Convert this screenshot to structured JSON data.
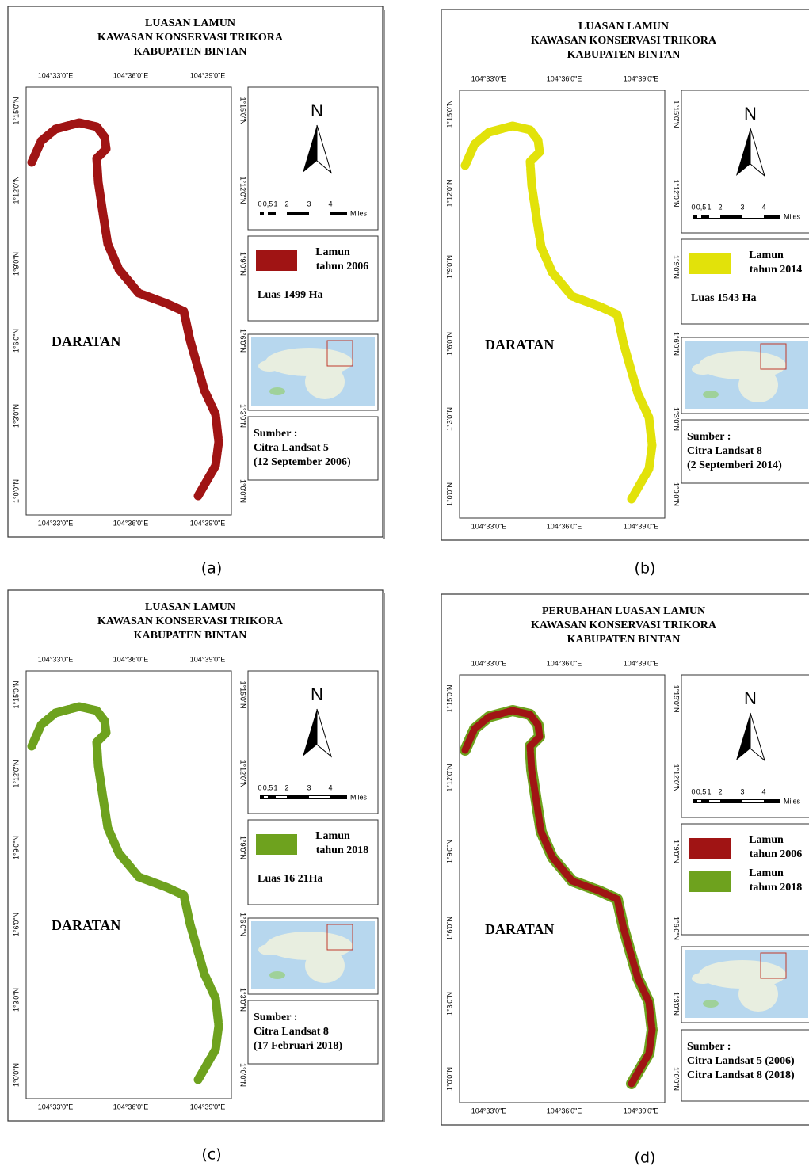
{
  "panels": [
    {
      "caption": "(a)",
      "title": [
        "LUASAN LAMUN",
        "KAWASAN KONSERVASI TRIKORA",
        "KABUPATEN BINTAN"
      ],
      "x_ticks": [
        "104°33'0\"E",
        "104°36'0\"E",
        "104°39'0\"E"
      ],
      "y_ticks": [
        "1°15'0\"N",
        "1°12'0\"N",
        "1°9'0\"N",
        "1°6'0\"N",
        "1°3'0\"N",
        "1°0'0\"N"
      ],
      "north": "N",
      "scale_labels": [
        "0",
        "0,5",
        "1",
        "2",
        "3",
        "4"
      ],
      "scale_unit": "Miles",
      "legend": [
        {
          "label": "Lamun",
          "sublabel": "tahun 2006",
          "color": "#a01414"
        }
      ],
      "area": "Luas 1499 Ha",
      "land_label": "DARATAN",
      "source": [
        "Sumber :",
        "Citra Landsat 5",
        "(12 September 2006)"
      ]
    },
    {
      "caption": "(b)",
      "title": [
        "LUASAN LAMUN",
        "KAWASAN KONSERVASI TRIKORA",
        "KABUPATEN BINTAN"
      ],
      "x_ticks": [
        "104°33'0\"E",
        "104°36'0\"E",
        "104°39'0\"E"
      ],
      "y_ticks": [
        "1°15'0\"N",
        "1°12'0\"N",
        "1°9'0\"N",
        "1°6'0\"N",
        "1°3'0\"N",
        "1°0'0\"N"
      ],
      "north": "N",
      "scale_labels": [
        "0",
        "0,5",
        "1",
        "2",
        "3",
        "4"
      ],
      "scale_unit": "Miles",
      "legend": [
        {
          "label": "Lamun",
          "sublabel": "tahun 2014",
          "color": "#e2e20a"
        }
      ],
      "area": "Luas 1543 Ha",
      "land_label": "DARATAN",
      "source": [
        "Sumber :",
        "Citra Landsat 8",
        "(2 Septemberi 2014)"
      ]
    },
    {
      "caption": "(c)",
      "title": [
        "LUASAN LAMUN",
        "KAWASAN KONSERVASI TRIKORA",
        "KABUPATEN BINTAN"
      ],
      "x_ticks": [
        "104°33'0\"E",
        "104°36'0\"E",
        "104°39'0\"E"
      ],
      "y_ticks": [
        "1°15'0\"N",
        "1°12'0\"N",
        "1°9'0\"N",
        "1°6'0\"N",
        "1°3'0\"N",
        "1°0'0\"N"
      ],
      "north": "N",
      "scale_labels": [
        "0",
        "0,5",
        "1",
        "2",
        "3",
        "4"
      ],
      "scale_unit": "Miles",
      "legend": [
        {
          "label": "Lamun",
          "sublabel": "tahun 2018",
          "color": "#6ea21e"
        }
      ],
      "area": "Luas 16 21Ha",
      "land_label": "DARATAN",
      "source": [
        "Sumber :",
        "Citra Landsat 8",
        "(17 Februari 2018)"
      ]
    },
    {
      "caption": "(d)",
      "title": [
        "PERUBAHAN LUASAN LAMUN",
        "KAWASAN KONSERVASI TRIKORA",
        "KABUPATEN BINTAN"
      ],
      "x_ticks": [
        "104°33'0\"E",
        "104°36'0\"E",
        "104°39'0\"E"
      ],
      "y_ticks": [
        "1°15'0\"N",
        "1°12'0\"N",
        "1°9'0\"N",
        "1°6'0\"N",
        "1°3'0\"N",
        "1°0'0\"N"
      ],
      "north": "N",
      "scale_labels": [
        "0",
        "0,5",
        "1",
        "2",
        "3",
        "4"
      ],
      "scale_unit": "Miles",
      "legend": [
        {
          "label": "Lamun",
          "sublabel": "tahun 2006",
          "color": "#a01414"
        },
        {
          "label": "Lamun",
          "sublabel": "tahun 2018",
          "color": "#6ea21e"
        }
      ],
      "land_label": "DARATAN",
      "source": [
        "Sumber :",
        "Citra Landsat 5 (2006)",
        "Citra Landsat 8 (2018)"
      ]
    }
  ]
}
